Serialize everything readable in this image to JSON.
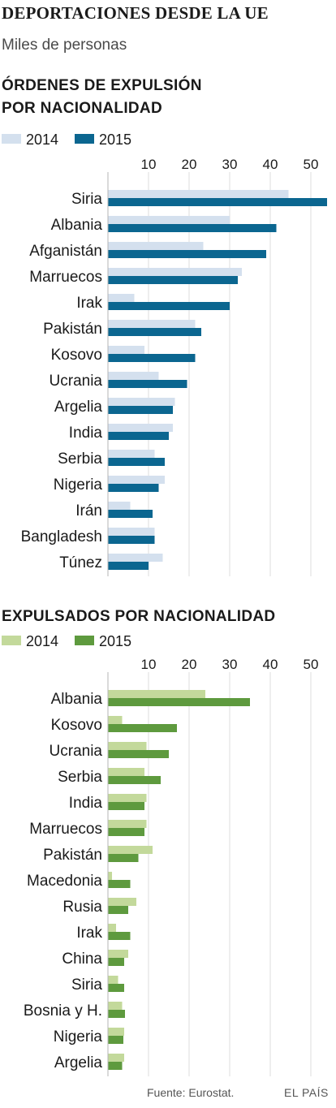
{
  "title": "DEPORTACIONES DESDE LA UE",
  "subtitle": "Miles de personas",
  "source": "Fuente: Eurostat.",
  "brand": "EL PAÍS",
  "chart_data": [
    {
      "type": "bar",
      "orientation": "horizontal",
      "title_lines": [
        "ÓRDENES DE EXPULSIÓN",
        "POR NACIONALIDAD"
      ],
      "ticks": [
        10,
        20,
        30,
        40,
        50
      ],
      "xlim": [
        0,
        55
      ],
      "grid": true,
      "legend_position": "top-left",
      "categories": [
        "Siria",
        "Albania",
        "Afganistán",
        "Marruecos",
        "Irak",
        "Pakistán",
        "Kosovo",
        "Ucrania",
        "Argelia",
        "India",
        "Serbia",
        "Nigeria",
        "Irán",
        "Bangladesh",
        "Túnez"
      ],
      "series": [
        {
          "name": "2014",
          "color": "#d4e0ee",
          "values": [
            44.5,
            30,
            23.5,
            33,
            6.5,
            21.5,
            9,
            12.5,
            16.5,
            16,
            11.5,
            14,
            5.5,
            11.5,
            13.5
          ]
        },
        {
          "name": "2015",
          "color": "#0b6690",
          "values": [
            54,
            41.5,
            39,
            32,
            30,
            23,
            21.5,
            19.5,
            16,
            15,
            14,
            12.5,
            11,
            11.5,
            10
          ]
        }
      ]
    },
    {
      "type": "bar",
      "orientation": "horizontal",
      "title_lines": [
        "EXPULSADOS POR NACIONALIDAD"
      ],
      "ticks": [
        10,
        20,
        30,
        40,
        50
      ],
      "xlim": [
        0,
        55
      ],
      "grid": true,
      "legend_position": "top-left",
      "categories": [
        "Albania",
        "Kosovo",
        "Ucrania",
        "Serbia",
        "India",
        "Marruecos",
        "Pakistán",
        "Macedonia",
        "Rusia",
        "Irak",
        "China",
        "Siria",
        "Bosnia y H.",
        "Nigeria",
        "Argelia"
      ],
      "series": [
        {
          "name": "2014",
          "color": "#c3d99b",
          "values": [
            24,
            3.5,
            9.5,
            9,
            9.5,
            9.5,
            11,
            1,
            7,
            2,
            5,
            2.5,
            3.5,
            4,
            4
          ]
        },
        {
          "name": "2015",
          "color": "#5e9a3e",
          "values": [
            35,
            17,
            15,
            13,
            9,
            9,
            7.5,
            5.5,
            5,
            5.5,
            4,
            4,
            4.2,
            3.8,
            3.5
          ]
        }
      ]
    }
  ]
}
